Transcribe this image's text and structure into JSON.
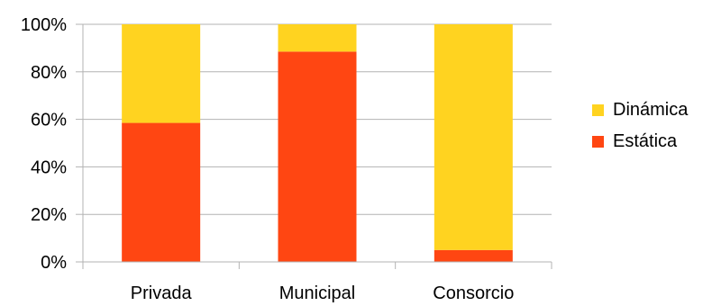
{
  "chart_data": {
    "type": "bar",
    "stacked": true,
    "normalized": true,
    "title": "",
    "xlabel": "",
    "ylabel": "",
    "categories": [
      "Privada",
      "Municipal",
      "Consorcio"
    ],
    "series": [
      {
        "name": "Estática",
        "color": "#ff4612",
        "values": [
          58.5,
          88.5,
          5
        ]
      },
      {
        "name": "Dinámica",
        "color": "#ffd320",
        "values": [
          41.5,
          11.5,
          95
        ]
      }
    ],
    "ylim": [
      0,
      100
    ],
    "yticks": [
      "0%",
      "20%",
      "40%",
      "60%",
      "80%",
      "100%"
    ],
    "grid": true,
    "grid_color": "#b3b3b3",
    "legend": {
      "position": "right",
      "entries": [
        "Dinámica",
        "Estática"
      ]
    }
  }
}
